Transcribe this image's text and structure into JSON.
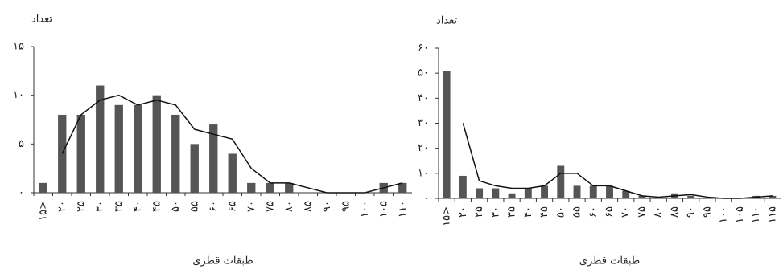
{
  "chart_data": [
    {
      "type": "bar",
      "ylabel": "تعداد",
      "xlabel": "طبقات قطری",
      "categories": [
        "۱۵>",
        "۲۰",
        "۲۵",
        "۳۰",
        "۳۵",
        "۴۰",
        "۴۵",
        "۵۰",
        "۵۵",
        "۶۰",
        "۶۵",
        "۷۰",
        "۷۵",
        "۸۰",
        "۸۵",
        "۹۰",
        "۹۵",
        "۱۰۰",
        "۱۰۵",
        "۱۱۰"
      ],
      "series": [
        {
          "type": "bar",
          "color": "#555555",
          "values": [
            1,
            8,
            8,
            11,
            9,
            9,
            10,
            8,
            5,
            7,
            4,
            1,
            1,
            1,
            0,
            0,
            0,
            0,
            1,
            1
          ]
        },
        {
          "type": "line",
          "color": "#111111",
          "values": [
            null,
            4,
            8,
            9.5,
            10,
            9,
            9.5,
            9,
            6.5,
            6,
            5.5,
            2.5,
            1,
            1,
            0.5,
            0,
            0,
            0,
            0.5,
            1
          ]
        }
      ],
      "ylim": [
        0,
        15
      ],
      "yticks": [
        {
          "value": 0,
          "label": "۰"
        },
        {
          "value": 5,
          "label": "۵"
        },
        {
          "value": 10,
          "label": "۱۰"
        },
        {
          "value": 15,
          "label": "۱۵"
        }
      ]
    },
    {
      "type": "bar",
      "ylabel": "تعداد",
      "xlabel": "طبقات قطری",
      "categories": [
        "۱۵>",
        "۲۰",
        "۲۵",
        "۳۰",
        "۳۵",
        "۴۰",
        "۴۵",
        "۵۰",
        "۵۵",
        "۶۰",
        "۶۵",
        "۷۰",
        "۷۵",
        "۸۰",
        "۸۵",
        "۹۰",
        "۹۵",
        "۱۰۰",
        "۱۰۵",
        "۱۱۰",
        "۱۱۵"
      ],
      "series": [
        {
          "type": "bar",
          "color": "#555555",
          "values": [
            51,
            9,
            4,
            4,
            2,
            4,
            5,
            13,
            5,
            5,
            5,
            3,
            1,
            0,
            2,
            1,
            0,
            0,
            0,
            1,
            1
          ]
        },
        {
          "type": "line",
          "color": "#111111",
          "values": [
            null,
            30,
            7,
            5,
            4,
            4,
            5,
            10,
            10,
            5,
            5,
            3,
            1,
            0.5,
            1,
            1.5,
            0.5,
            0,
            0,
            0.5,
            1
          ]
        }
      ],
      "ylim": [
        0,
        60
      ],
      "yticks": [
        {
          "value": 0,
          "label": "۰"
        },
        {
          "value": 10,
          "label": "۱۰"
        },
        {
          "value": 20,
          "label": "۲۰"
        },
        {
          "value": 30,
          "label": "۳۰"
        },
        {
          "value": 40,
          "label": "۴۰"
        },
        {
          "value": 50,
          "label": "۵۰"
        },
        {
          "value": 60,
          "label": "۶۰"
        }
      ]
    }
  ]
}
